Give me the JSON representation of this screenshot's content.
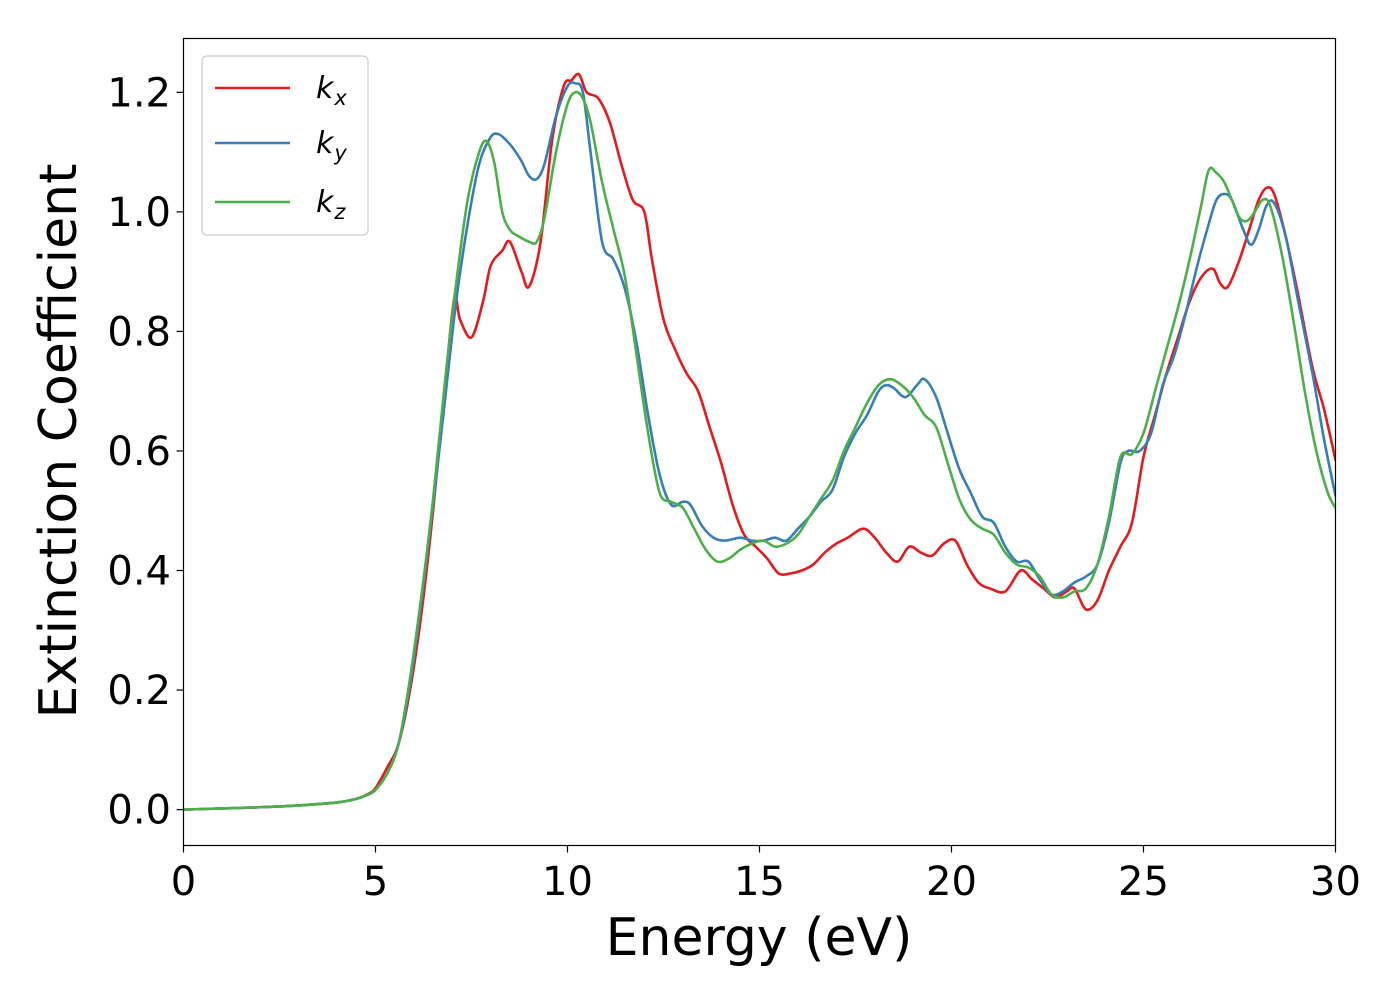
{
  "chart_data": {
    "type": "line",
    "title": "",
    "xlabel": "Energy (eV)",
    "ylabel": "Extinction Coefficient",
    "xlim": [
      0,
      30
    ],
    "ylim": [
      -0.06,
      1.29
    ],
    "xticks": [
      0,
      5,
      10,
      15,
      20,
      25,
      30
    ],
    "xtick_labels": [
      "0",
      "5",
      "10",
      "15",
      "20",
      "25",
      "30"
    ],
    "yticks": [
      0.0,
      0.2,
      0.4,
      0.6,
      0.8,
      1.0,
      1.2
    ],
    "ytick_labels": [
      "0.0",
      "0.2",
      "0.4",
      "0.6",
      "0.8",
      "1.0",
      "1.2"
    ],
    "grid": false,
    "legend_position": "top-left",
    "series": [
      {
        "name": "k_x",
        "label_main": "k",
        "label_sub": "x",
        "color": "#e41a1c",
        "x": [
          0,
          1,
          2,
          3,
          4,
          4.5,
          4.8,
          5,
          5.3,
          5.6,
          5.9,
          6.2,
          6.5,
          6.8,
          7.05,
          7.2,
          7.5,
          7.8,
          8.0,
          8.3,
          8.5,
          8.8,
          9.0,
          9.3,
          9.6,
          9.9,
          10.1,
          10.3,
          10.5,
          10.8,
          11.1,
          11.4,
          11.7,
          12.0,
          12.2,
          12.5,
          12.8,
          13.1,
          13.4,
          13.7,
          14.0,
          14.3,
          14.6,
          14.9,
          15.2,
          15.5,
          15.8,
          16.1,
          16.4,
          16.7,
          17.0,
          17.3,
          17.7,
          18.0,
          18.3,
          18.6,
          18.9,
          19.2,
          19.5,
          19.8,
          20.1,
          20.4,
          20.7,
          21.0,
          21.4,
          21.8,
          22.1,
          22.4,
          22.7,
          23.0,
          23.2,
          23.5,
          23.8,
          24.1,
          24.4,
          24.7,
          25.0,
          25.3,
          25.6,
          25.9,
          26.2,
          26.5,
          26.8,
          27.0,
          27.2,
          27.5,
          27.8,
          28.0,
          28.2,
          28.4,
          28.7,
          29.0,
          29.4,
          29.7,
          30.0
        ],
        "y": [
          0.0,
          0.002,
          0.004,
          0.007,
          0.012,
          0.018,
          0.026,
          0.036,
          0.07,
          0.11,
          0.2,
          0.33,
          0.5,
          0.7,
          0.855,
          0.82,
          0.79,
          0.85,
          0.91,
          0.935,
          0.95,
          0.9,
          0.875,
          0.95,
          1.12,
          1.21,
          1.22,
          1.23,
          1.2,
          1.19,
          1.15,
          1.08,
          1.02,
          1.0,
          0.92,
          0.82,
          0.77,
          0.73,
          0.7,
          0.64,
          0.58,
          0.51,
          0.46,
          0.44,
          0.42,
          0.395,
          0.395,
          0.4,
          0.41,
          0.43,
          0.445,
          0.455,
          0.47,
          0.455,
          0.43,
          0.415,
          0.44,
          0.43,
          0.425,
          0.445,
          0.45,
          0.41,
          0.38,
          0.37,
          0.365,
          0.4,
          0.385,
          0.37,
          0.355,
          0.365,
          0.37,
          0.335,
          0.35,
          0.4,
          0.44,
          0.48,
          0.59,
          0.66,
          0.73,
          0.79,
          0.85,
          0.89,
          0.905,
          0.88,
          0.875,
          0.92,
          0.98,
          1.02,
          1.04,
          1.03,
          0.96,
          0.87,
          0.74,
          0.67,
          0.585
        ]
      },
      {
        "name": "k_y",
        "label_main": "k",
        "label_sub": "y",
        "color": "#377eb8",
        "x": [
          0,
          1,
          2,
          3,
          4,
          4.5,
          4.8,
          5,
          5.3,
          5.6,
          5.9,
          6.2,
          6.5,
          6.8,
          7.1,
          7.4,
          7.7,
          8.0,
          8.2,
          8.4,
          8.6,
          8.8,
          9.0,
          9.2,
          9.4,
          9.7,
          10.0,
          10.2,
          10.4,
          10.6,
          10.9,
          11.2,
          11.5,
          11.8,
          12.1,
          12.4,
          12.7,
          13.0,
          13.2,
          13.5,
          13.8,
          14.1,
          14.5,
          14.8,
          15.1,
          15.4,
          15.7,
          16.0,
          16.3,
          16.6,
          16.9,
          17.2,
          17.5,
          17.8,
          18.1,
          18.3,
          18.5,
          18.8,
          19.1,
          19.3,
          19.6,
          19.9,
          20.2,
          20.5,
          20.8,
          21.1,
          21.4,
          21.7,
          22.0,
          22.3,
          22.6,
          22.9,
          23.2,
          23.5,
          23.8,
          24.1,
          24.4,
          24.6,
          24.9,
          25.2,
          25.5,
          25.8,
          26.1,
          26.4,
          26.7,
          26.9,
          27.1,
          27.3,
          27.6,
          27.8,
          28.0,
          28.2,
          28.4,
          28.7,
          29.0,
          29.4,
          29.7,
          30.0
        ],
        "y": [
          0.0,
          0.002,
          0.004,
          0.007,
          0.012,
          0.018,
          0.025,
          0.033,
          0.06,
          0.11,
          0.21,
          0.35,
          0.51,
          0.68,
          0.85,
          0.98,
          1.08,
          1.125,
          1.13,
          1.12,
          1.105,
          1.085,
          1.06,
          1.055,
          1.08,
          1.16,
          1.21,
          1.215,
          1.2,
          1.1,
          0.95,
          0.92,
          0.87,
          0.78,
          0.66,
          0.56,
          0.51,
          0.515,
          0.51,
          0.475,
          0.455,
          0.45,
          0.455,
          0.45,
          0.45,
          0.455,
          0.45,
          0.47,
          0.49,
          0.515,
          0.535,
          0.59,
          0.63,
          0.66,
          0.7,
          0.71,
          0.705,
          0.69,
          0.71,
          0.72,
          0.69,
          0.63,
          0.57,
          0.53,
          0.49,
          0.48,
          0.44,
          0.415,
          0.415,
          0.385,
          0.36,
          0.365,
          0.38,
          0.39,
          0.41,
          0.48,
          0.58,
          0.6,
          0.6,
          0.63,
          0.71,
          0.76,
          0.83,
          0.91,
          0.98,
          1.02,
          1.03,
          1.02,
          0.97,
          0.945,
          0.97,
          1.01,
          1.015,
          0.96,
          0.86,
          0.73,
          0.62,
          0.525
        ]
      },
      {
        "name": "k_z",
        "label_main": "k",
        "label_sub": "z",
        "color": "#4daf4a",
        "x": [
          0,
          1,
          2,
          3,
          4,
          4.5,
          4.8,
          5,
          5.3,
          5.6,
          5.9,
          6.2,
          6.5,
          6.8,
          7.1,
          7.4,
          7.7,
          7.9,
          8.1,
          8.3,
          8.5,
          8.7,
          9.0,
          9.2,
          9.4,
          9.7,
          10.0,
          10.2,
          10.4,
          10.6,
          10.9,
          11.2,
          11.5,
          11.8,
          12.1,
          12.4,
          12.7,
          13.0,
          13.3,
          13.6,
          13.9,
          14.2,
          14.5,
          14.8,
          15.1,
          15.4,
          15.7,
          16.0,
          16.3,
          16.6,
          16.9,
          17.2,
          17.5,
          17.8,
          18.1,
          18.4,
          18.7,
          19.0,
          19.3,
          19.6,
          19.9,
          20.2,
          20.5,
          20.8,
          21.1,
          21.4,
          21.7,
          22.0,
          22.3,
          22.6,
          22.9,
          23.2,
          23.5,
          23.8,
          24.1,
          24.4,
          24.7,
          25.0,
          25.3,
          25.6,
          25.9,
          26.2,
          26.5,
          26.7,
          26.9,
          27.1,
          27.3,
          27.5,
          27.7,
          27.9,
          28.1,
          28.3,
          28.6,
          28.9,
          29.2,
          29.5,
          29.8,
          30.0
        ],
        "y": [
          0.0,
          0.002,
          0.004,
          0.007,
          0.012,
          0.018,
          0.025,
          0.033,
          0.06,
          0.11,
          0.22,
          0.36,
          0.52,
          0.71,
          0.88,
          1.02,
          1.1,
          1.118,
          1.08,
          1.0,
          0.97,
          0.96,
          0.95,
          0.95,
          0.99,
          1.1,
          1.18,
          1.2,
          1.19,
          1.15,
          1.05,
          0.97,
          0.89,
          0.76,
          0.63,
          0.53,
          0.515,
          0.505,
          0.47,
          0.435,
          0.415,
          0.42,
          0.435,
          0.445,
          0.45,
          0.44,
          0.445,
          0.46,
          0.49,
          0.52,
          0.55,
          0.6,
          0.64,
          0.68,
          0.71,
          0.72,
          0.71,
          0.69,
          0.66,
          0.64,
          0.58,
          0.52,
          0.485,
          0.47,
          0.46,
          0.43,
          0.41,
          0.405,
          0.39,
          0.36,
          0.355,
          0.365,
          0.37,
          0.41,
          0.49,
          0.59,
          0.595,
          0.63,
          0.7,
          0.77,
          0.84,
          0.92,
          1.01,
          1.07,
          1.065,
          1.05,
          1.02,
          0.99,
          0.985,
          1.0,
          1.02,
          1.01,
          0.93,
          0.82,
          0.7,
          0.6,
          0.53,
          0.505
        ]
      }
    ]
  }
}
